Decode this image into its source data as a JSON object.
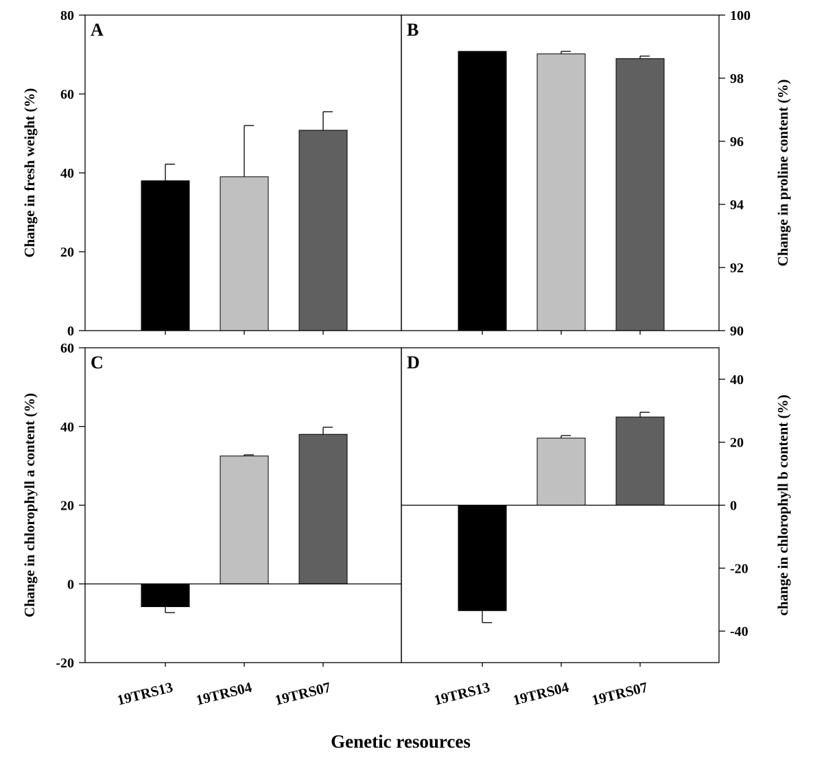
{
  "figure": {
    "xlabel": "Genetic resources",
    "categories": [
      "19TRS13",
      "19TRS04",
      "19TRS07"
    ],
    "bar_colors": [
      "#000000",
      "#c0c0c0",
      "#606060"
    ]
  },
  "chart_data": [
    {
      "type": "bar",
      "panel": "A",
      "ylabel": "Change in  fresh weight (%)",
      "ylim": [
        0,
        80
      ],
      "yticks": [
        0,
        20,
        40,
        60,
        80
      ],
      "axis_side": "left",
      "categories": [
        "19TRS13",
        "19TRS04",
        "19TRS07"
      ],
      "values": [
        38,
        39,
        50.8
      ],
      "errors": [
        4.2,
        13,
        4.7
      ],
      "zero_line": false
    },
    {
      "type": "bar",
      "panel": "B",
      "ylabel": "Change in proline content (%)",
      "ylim": [
        90,
        100
      ],
      "yticks": [
        90,
        92,
        94,
        96,
        98,
        100
      ],
      "axis_side": "right",
      "categories": [
        "19TRS13",
        "19TRS04",
        "19TRS07"
      ],
      "values": [
        98.85,
        98.77,
        98.62
      ],
      "errors": [
        0,
        0.08,
        0.08
      ],
      "zero_line": false
    },
    {
      "type": "bar",
      "panel": "C",
      "ylabel": "Change in chlorophyll a content (%)",
      "ylim": [
        -20,
        60
      ],
      "yticks": [
        -20,
        0,
        20,
        40,
        60
      ],
      "axis_side": "left",
      "categories": [
        "19TRS13",
        "19TRS04",
        "19TRS07"
      ],
      "values": [
        -5.8,
        32.5,
        38
      ],
      "errors": [
        1.5,
        0.3,
        1.8
      ],
      "zero_line": true
    },
    {
      "type": "bar",
      "panel": "D",
      "ylabel": "change in chlorophyll b content (%)",
      "ylim": [
        -50,
        50
      ],
      "yticks": [
        -40,
        -20,
        0,
        20,
        40
      ],
      "axis_side": "right",
      "categories": [
        "19TRS13",
        "19TRS04",
        "19TRS07"
      ],
      "values": [
        -33.5,
        21.3,
        28
      ],
      "errors": [
        3.8,
        0.8,
        1.5
      ],
      "zero_line": true
    }
  ]
}
